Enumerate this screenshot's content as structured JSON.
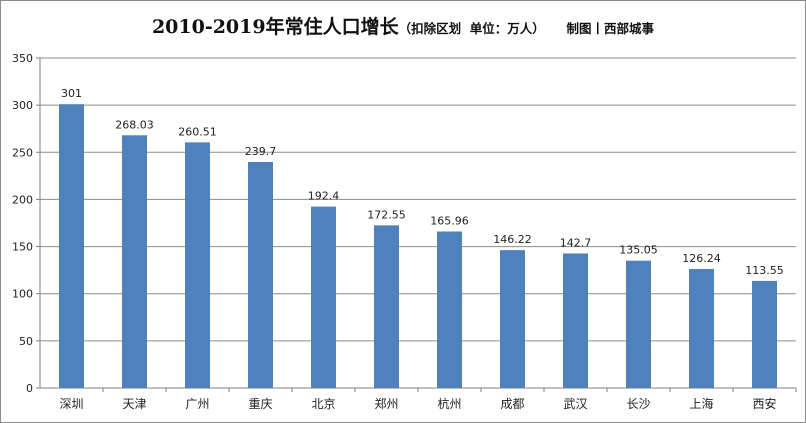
{
  "chart_data": {
    "type": "bar",
    "title": "2010-2019年常住人口增长",
    "subtitle": "（扣除区划  单位：万人）     制图丨西部城事",
    "categories": [
      "深圳",
      "天津",
      "广州",
      "重庆",
      "北京",
      "郑州",
      "杭州",
      "成都",
      "武汉",
      "长沙",
      "上海",
      "西安"
    ],
    "values": [
      301,
      268.03,
      260.51,
      239.7,
      192.4,
      172.55,
      165.96,
      146.22,
      142.7,
      135.05,
      126.24,
      113.55
    ],
    "value_labels": [
      "301",
      "268.03",
      "260.51",
      "239.7",
      "192.4",
      "172.55",
      "165.96",
      "146.22",
      "142.7",
      "135.05",
      "126.24",
      "113.55"
    ],
    "ylim": [
      0,
      350
    ],
    "yticks": [
      "0",
      "50",
      "100",
      "150",
      "200",
      "250",
      "300",
      "350"
    ],
    "grid": true,
    "xlabel": "",
    "ylabel": "",
    "colors": {
      "bar": "#4f81bd",
      "grid": "#8c8c8c",
      "axis": "#7f7f7f"
    }
  }
}
